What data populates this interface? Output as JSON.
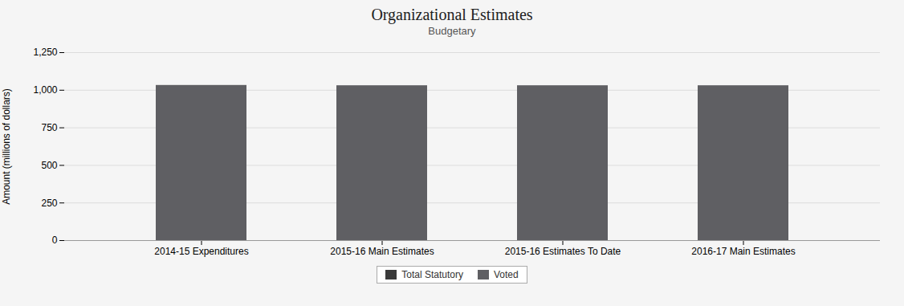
{
  "chart_data": {
    "type": "bar",
    "title": "Organizational Estimates",
    "subtitle": "Budgetary",
    "ylabel": "Amount (millions of dollars)",
    "categories": [
      "2014-15 Expenditures",
      "2015-16 Main Estimates",
      "2015-16 Estimates To Date",
      "2016-17 Main Estimates"
    ],
    "series": [
      {
        "name": "Total Statutory",
        "color": "#3a3a3a",
        "values": [
          null,
          null,
          null,
          null
        ]
      },
      {
        "name": "Voted",
        "color": "#5f5f63",
        "values": [
          1032,
          1030,
          1030,
          1030
        ]
      }
    ],
    "stacked": true,
    "ylim": [
      0,
      1250
    ],
    "yticks": [
      0,
      250,
      500,
      750,
      {
        "value": 1000,
        "label": "1,000"
      },
      {
        "value": 1250,
        "label": "1,250"
      }
    ],
    "grid": true,
    "legend": "bottom"
  }
}
